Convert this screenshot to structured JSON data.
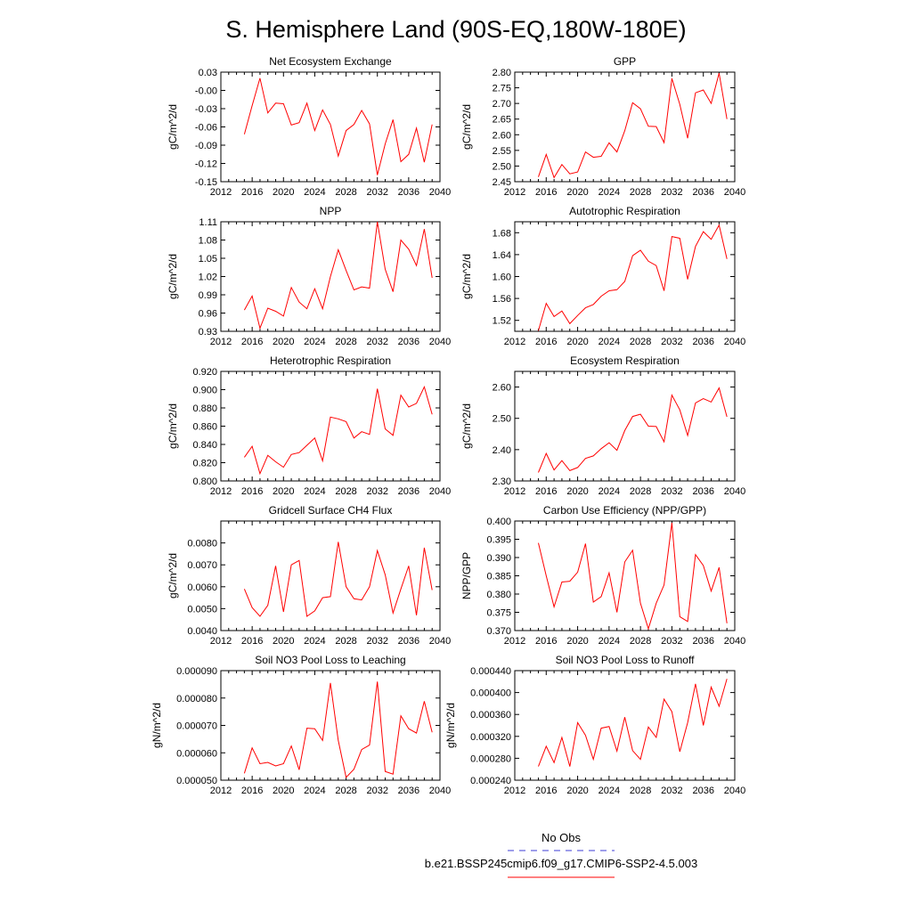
{
  "figure": {
    "title": "S. Hemisphere Land (90S-EQ,180W-180E)",
    "legend": {
      "obs_label": "No Obs",
      "obs_color": "#3b3bd6",
      "model_label": "b.e21.BSSP245cmip6.f09_g17.CMIP6-SSP2-4.5.003",
      "model_color": "#ff0000"
    }
  },
  "chart_data": [
    {
      "type": "line",
      "title": "Net Ecosystem Exchange",
      "xlabel": "",
      "ylabel": "gC/m^2/d",
      "xlim": [
        2012,
        2040
      ],
      "ylim": [
        -0.15,
        0.03
      ],
      "xticks": [
        2012,
        2016,
        2020,
        2024,
        2028,
        2032,
        2036,
        2040
      ],
      "yticks": [
        "0.03",
        "-0.00",
        "-0.03",
        "-0.06",
        "-0.09",
        "-0.12",
        "-0.15"
      ],
      "ytick_values": [
        0.03,
        0.0,
        -0.03,
        -0.06,
        -0.09,
        -0.12,
        -0.15
      ],
      "grid": false,
      "series": [
        {
          "name": "b.e21.BSSP245cmip6.f09_g17.CMIP6-SSP2-4.5.003",
          "color": "#ff0000",
          "x": [
            2015,
            2016,
            2017,
            2018,
            2019,
            2020,
            2021,
            2022,
            2023,
            2024,
            2025,
            2026,
            2027,
            2028,
            2029,
            2030,
            2031,
            2032,
            2033,
            2034,
            2035,
            2036,
            2037,
            2038,
            2039
          ],
          "values": [
            -0.072,
            -0.025,
            0.02,
            -0.037,
            -0.021,
            -0.022,
            -0.057,
            -0.053,
            -0.021,
            -0.066,
            -0.032,
            -0.056,
            -0.108,
            -0.066,
            -0.056,
            -0.033,
            -0.055,
            -0.139,
            -0.088,
            -0.048,
            -0.117,
            -0.105,
            -0.062,
            -0.118,
            -0.056
          ]
        }
      ]
    },
    {
      "type": "line",
      "title": "GPP",
      "xlabel": "",
      "ylabel": "gC/m^2/d",
      "xlim": [
        2012,
        2040
      ],
      "ylim": [
        2.45,
        2.8
      ],
      "xticks": [
        2012,
        2016,
        2020,
        2024,
        2028,
        2032,
        2036,
        2040
      ],
      "yticks": [
        "2.80",
        "2.75",
        "2.70",
        "2.65",
        "2.60",
        "2.55",
        "2.50",
        "2.45"
      ],
      "ytick_values": [
        2.8,
        2.75,
        2.7,
        2.65,
        2.6,
        2.55,
        2.5,
        2.45
      ],
      "grid": false,
      "series": [
        {
          "name": "b.e21.BSSP245cmip6.f09_g17.CMIP6-SSP2-4.5.003",
          "color": "#ff0000",
          "x": [
            2015,
            2016,
            2017,
            2018,
            2019,
            2020,
            2021,
            2022,
            2023,
            2024,
            2025,
            2026,
            2027,
            2028,
            2029,
            2030,
            2031,
            2032,
            2033,
            2034,
            2035,
            2036,
            2037,
            2038,
            2039
          ],
          "values": [
            2.465,
            2.537,
            2.463,
            2.505,
            2.475,
            2.481,
            2.545,
            2.528,
            2.531,
            2.574,
            2.545,
            2.613,
            2.702,
            2.683,
            2.627,
            2.626,
            2.575,
            2.78,
            2.697,
            2.589,
            2.734,
            2.743,
            2.7,
            2.797,
            2.65
          ]
        }
      ]
    },
    {
      "type": "line",
      "title": "NPP",
      "xlabel": "",
      "ylabel": "gC/m^2/d",
      "xlim": [
        2012,
        2040
      ],
      "ylim": [
        0.93,
        1.11
      ],
      "xticks": [
        2012,
        2016,
        2020,
        2024,
        2028,
        2032,
        2036,
        2040
      ],
      "yticks": [
        "1.11",
        "1.08",
        "1.05",
        "1.02",
        "0.99",
        "0.96",
        "0.93"
      ],
      "ytick_values": [
        1.11,
        1.08,
        1.05,
        1.02,
        0.99,
        0.96,
        0.93
      ],
      "grid": false,
      "series": [
        {
          "name": "b.e21.BSSP245cmip6.f09_g17.CMIP6-SSP2-4.5.003",
          "color": "#ff0000",
          "x": [
            2015,
            2016,
            2017,
            2018,
            2019,
            2020,
            2021,
            2022,
            2023,
            2024,
            2025,
            2026,
            2027,
            2028,
            2029,
            2030,
            2031,
            2032,
            2033,
            2034,
            2035,
            2036,
            2037,
            2038,
            2039
          ],
          "values": [
            0.965,
            0.988,
            0.935,
            0.968,
            0.963,
            0.955,
            1.002,
            0.978,
            0.967,
            1.0,
            0.967,
            1.02,
            1.064,
            1.03,
            0.998,
            1.003,
            1.001,
            1.11,
            1.032,
            0.995,
            1.08,
            1.065,
            1.038,
            1.098,
            1.018
          ]
        }
      ]
    },
    {
      "type": "line",
      "title": "Autotrophic Respiration",
      "xlabel": "",
      "ylabel": "gC/m^2/d",
      "xlim": [
        2012,
        2040
      ],
      "ylim": [
        1.5,
        1.7
      ],
      "xticks": [
        2012,
        2016,
        2020,
        2024,
        2028,
        2032,
        2036,
        2040
      ],
      "yticks": [
        "1.68",
        "1.64",
        "1.60",
        "1.56",
        "1.52"
      ],
      "ytick_values": [
        1.68,
        1.64,
        1.6,
        1.56,
        1.52
      ],
      "grid": false,
      "series": [
        {
          "name": "b.e21.BSSP245cmip6.f09_g17.CMIP6-SSP2-4.5.003",
          "color": "#ff0000",
          "x": [
            2015,
            2016,
            2017,
            2018,
            2019,
            2020,
            2021,
            2022,
            2023,
            2024,
            2025,
            2026,
            2027,
            2028,
            2029,
            2030,
            2031,
            2032,
            2033,
            2034,
            2035,
            2036,
            2037,
            2038,
            2039
          ],
          "values": [
            1.501,
            1.551,
            1.527,
            1.537,
            1.514,
            1.529,
            1.543,
            1.549,
            1.564,
            1.574,
            1.576,
            1.591,
            1.638,
            1.648,
            1.628,
            1.62,
            1.574,
            1.673,
            1.67,
            1.595,
            1.655,
            1.682,
            1.668,
            1.694,
            1.632
          ]
        }
      ]
    },
    {
      "type": "line",
      "title": "Heterotrophic Respiration",
      "xlabel": "",
      "ylabel": "gC/m^2/d",
      "xlim": [
        2012,
        2040
      ],
      "ylim": [
        0.8,
        0.92
      ],
      "xticks": [
        2012,
        2016,
        2020,
        2024,
        2028,
        2032,
        2036,
        2040
      ],
      "yticks": [
        "0.920",
        "0.900",
        "0.880",
        "0.860",
        "0.840",
        "0.820",
        "0.800"
      ],
      "ytick_values": [
        0.92,
        0.9,
        0.88,
        0.86,
        0.84,
        0.82,
        0.8
      ],
      "grid": false,
      "series": [
        {
          "name": "b.e21.BSSP245cmip6.f09_g17.CMIP6-SSP2-4.5.003",
          "color": "#ff0000",
          "x": [
            2015,
            2016,
            2017,
            2018,
            2019,
            2020,
            2021,
            2022,
            2023,
            2024,
            2025,
            2026,
            2027,
            2028,
            2029,
            2030,
            2031,
            2032,
            2033,
            2034,
            2035,
            2036,
            2037,
            2038,
            2039
          ],
          "values": [
            0.826,
            0.838,
            0.808,
            0.828,
            0.821,
            0.815,
            0.829,
            0.831,
            0.839,
            0.847,
            0.822,
            0.87,
            0.868,
            0.865,
            0.847,
            0.854,
            0.851,
            0.901,
            0.857,
            0.85,
            0.894,
            0.881,
            0.885,
            0.903,
            0.873
          ]
        }
      ]
    },
    {
      "type": "line",
      "title": "Ecosystem Respiration",
      "xlabel": "",
      "ylabel": "gC/m^2/d",
      "xlim": [
        2012,
        2040
      ],
      "ylim": [
        2.3,
        2.65
      ],
      "xticks": [
        2012,
        2016,
        2020,
        2024,
        2028,
        2032,
        2036,
        2040
      ],
      "yticks": [
        "2.60",
        "2.50",
        "2.40",
        "2.30"
      ],
      "ytick_values": [
        2.6,
        2.5,
        2.4,
        2.3
      ],
      "grid": false,
      "series": [
        {
          "name": "b.e21.BSSP245cmip6.f09_g17.CMIP6-SSP2-4.5.003",
          "color": "#ff0000",
          "x": [
            2015,
            2016,
            2017,
            2018,
            2019,
            2020,
            2021,
            2022,
            2023,
            2024,
            2025,
            2026,
            2027,
            2028,
            2029,
            2030,
            2031,
            2032,
            2033,
            2034,
            2035,
            2036,
            2037,
            2038,
            2039
          ],
          "values": [
            2.327,
            2.388,
            2.335,
            2.365,
            2.333,
            2.343,
            2.372,
            2.38,
            2.403,
            2.422,
            2.398,
            2.461,
            2.506,
            2.513,
            2.475,
            2.474,
            2.425,
            2.574,
            2.527,
            2.445,
            2.549,
            2.563,
            2.552,
            2.597,
            2.505
          ]
        }
      ]
    },
    {
      "type": "line",
      "title": "Gridcell Surface CH4 Flux",
      "xlabel": "",
      "ylabel": "gC/m^2/d",
      "xlim": [
        2012,
        2040
      ],
      "ylim": [
        0.004,
        0.009
      ],
      "xticks": [
        2012,
        2016,
        2020,
        2024,
        2028,
        2032,
        2036,
        2040
      ],
      "yticks": [
        "0.0080",
        "0.0070",
        "0.0060",
        "0.0050",
        "0.0040"
      ],
      "ytick_values": [
        0.008,
        0.007,
        0.006,
        0.005,
        0.004
      ],
      "grid": false,
      "series": [
        {
          "name": "b.e21.BSSP245cmip6.f09_g17.CMIP6-SSP2-4.5.003",
          "color": "#ff0000",
          "x": [
            2015,
            2016,
            2017,
            2018,
            2019,
            2020,
            2021,
            2022,
            2023,
            2024,
            2025,
            2026,
            2027,
            2028,
            2029,
            2030,
            2031,
            2032,
            2033,
            2034,
            2035,
            2036,
            2037,
            2038,
            2039
          ],
          "values": [
            0.0059,
            0.00505,
            0.00465,
            0.00515,
            0.00695,
            0.00485,
            0.007,
            0.0072,
            0.00465,
            0.0049,
            0.0055,
            0.00555,
            0.00805,
            0.006,
            0.00545,
            0.0054,
            0.006,
            0.00765,
            0.00655,
            0.0048,
            0.0059,
            0.00695,
            0.0047,
            0.00778,
            0.00585
          ]
        }
      ]
    },
    {
      "type": "line",
      "title": "Carbon Use Efficiency (NPP/GPP)",
      "xlabel": "",
      "ylabel": "NPP/GPP",
      "xlim": [
        2012,
        2040
      ],
      "ylim": [
        0.37,
        0.4
      ],
      "xticks": [
        2012,
        2016,
        2020,
        2024,
        2028,
        2032,
        2036,
        2040
      ],
      "yticks": [
        "0.400",
        "0.395",
        "0.390",
        "0.385",
        "0.380",
        "0.375",
        "0.370"
      ],
      "ytick_values": [
        0.4,
        0.395,
        0.39,
        0.385,
        0.38,
        0.375,
        0.37
      ],
      "grid": false,
      "series": [
        {
          "name": "b.e21.BSSP245cmip6.f09_g17.CMIP6-SSP2-4.5.003",
          "color": "#ff0000",
          "x": [
            2015,
            2016,
            2017,
            2018,
            2019,
            2020,
            2021,
            2022,
            2023,
            2024,
            2025,
            2026,
            2027,
            2028,
            2029,
            2030,
            2031,
            2032,
            2033,
            2034,
            2035,
            2036,
            2037,
            2038,
            2039
          ],
          "values": [
            0.394,
            0.385,
            0.3765,
            0.3833,
            0.3835,
            0.386,
            0.3938,
            0.3778,
            0.3793,
            0.3858,
            0.375,
            0.3888,
            0.392,
            0.3775,
            0.3705,
            0.3775,
            0.3825,
            0.3995,
            0.3738,
            0.3725,
            0.3908,
            0.3878,
            0.3808,
            0.3873,
            0.372
          ]
        }
      ]
    },
    {
      "type": "line",
      "title": "Soil NO3 Pool Loss to Leaching",
      "xlabel": "",
      "ylabel": "gN/m^2/d",
      "xlim": [
        2012,
        2040
      ],
      "ylim": [
        5e-05,
        9e-05
      ],
      "xticks": [
        2012,
        2016,
        2020,
        2024,
        2028,
        2032,
        2036,
        2040
      ],
      "yticks": [
        "0.000090",
        "0.000080",
        "0.000070",
        "0.000060",
        "0.000050"
      ],
      "ytick_values": [
        9e-05,
        8e-05,
        7e-05,
        6e-05,
        5e-05
      ],
      "grid": false,
      "series": [
        {
          "name": "b.e21.BSSP245cmip6.f09_g17.CMIP6-SSP2-4.5.003",
          "color": "#ff0000",
          "x": [
            2015,
            2016,
            2017,
            2018,
            2019,
            2020,
            2021,
            2022,
            2023,
            2024,
            2025,
            2026,
            2027,
            2028,
            2029,
            2030,
            2031,
            2032,
            2033,
            2034,
            2035,
            2036,
            2037,
            2038,
            2039
          ],
          "values": [
            5.25e-05,
            6.18e-05,
            5.6e-05,
            5.65e-05,
            5.52e-05,
            5.6e-05,
            6.25e-05,
            5.38e-05,
            6.9e-05,
            6.88e-05,
            6.45e-05,
            8.55e-05,
            6.45e-05,
            5.1e-05,
            5.4e-05,
            6.12e-05,
            6.28e-05,
            8.6e-05,
            5.32e-05,
            5.22e-05,
            7.35e-05,
            6.88e-05,
            6.72e-05,
            7.88e-05,
            6.75e-05
          ]
        }
      ]
    },
    {
      "type": "line",
      "title": "Soil NO3 Pool Loss to Runoff",
      "xlabel": "",
      "ylabel": "gN/m^2/d",
      "xlim": [
        2012,
        2040
      ],
      "ylim": [
        0.00024,
        0.00044
      ],
      "xticks": [
        2012,
        2016,
        2020,
        2024,
        2028,
        2032,
        2036,
        2040
      ],
      "yticks": [
        "0.000440",
        "0.000400",
        "0.000360",
        "0.000320",
        "0.000280",
        "0.000240"
      ],
      "ytick_values": [
        0.00044,
        0.0004,
        0.00036,
        0.00032,
        0.00028,
        0.00024
      ],
      "grid": false,
      "series": [
        {
          "name": "b.e21.BSSP245cmip6.f09_g17.CMIP6-SSP2-4.5.003",
          "color": "#ff0000",
          "x": [
            2015,
            2016,
            2017,
            2018,
            2019,
            2020,
            2021,
            2022,
            2023,
            2024,
            2025,
            2026,
            2027,
            2028,
            2029,
            2030,
            2031,
            2032,
            2033,
            2034,
            2035,
            2036,
            2037,
            2038,
            2039
          ],
          "values": [
            0.000265,
            0.000302,
            0.000272,
            0.000318,
            0.000265,
            0.000345,
            0.000322,
            0.000278,
            0.000335,
            0.000338,
            0.000293,
            0.000355,
            0.000294,
            0.000278,
            0.000337,
            0.000318,
            0.000388,
            0.000365,
            0.000292,
            0.000345,
            0.000416,
            0.00034,
            0.00041,
            0.000375,
            0.000425
          ]
        }
      ]
    }
  ]
}
